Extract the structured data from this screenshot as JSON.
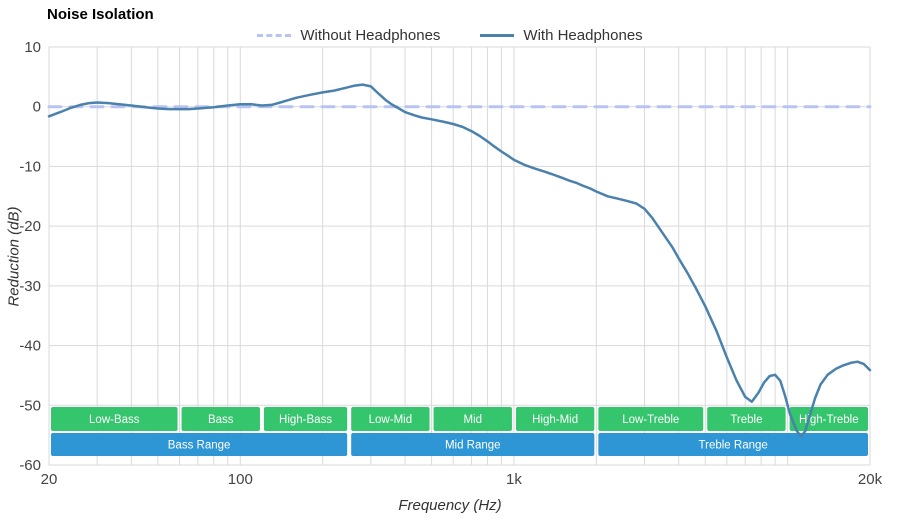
{
  "title": "Noise Isolation",
  "legend": [
    {
      "label": "Without Headphones",
      "dash": true,
      "color": "#b9c3f3"
    },
    {
      "label": "With Headphones",
      "dash": false,
      "color": "#4a81ad"
    }
  ],
  "style": {
    "grid_color": "#d9d9d9",
    "tick_color": "#444444",
    "band_text_color": "#ffffff"
  },
  "chart_data": {
    "type": "line",
    "title": "Noise Isolation",
    "xlabel": "Frequency (Hz)",
    "ylabel": "Reduction (dB)",
    "x_scale": "log",
    "xlim": [
      20,
      20000
    ],
    "ylim": [
      -60,
      10
    ],
    "grid": true,
    "legend_position": "top-center",
    "x_ticks": [
      {
        "value": 20,
        "label": "20"
      },
      {
        "value": 100,
        "label": "100"
      },
      {
        "value": 1000,
        "label": "1k"
      },
      {
        "value": 20000,
        "label": "20k"
      }
    ],
    "y_ticks": [
      {
        "value": 10,
        "label": "10"
      },
      {
        "value": 0,
        "label": "0"
      },
      {
        "value": -10,
        "label": "-10"
      },
      {
        "value": -20,
        "label": "-20"
      },
      {
        "value": -30,
        "label": "-30"
      },
      {
        "value": -40,
        "label": "-40"
      },
      {
        "value": -50,
        "label": "-50"
      },
      {
        "value": -60,
        "label": "-60"
      }
    ],
    "x_gridlines": [
      20,
      30,
      40,
      50,
      60,
      70,
      80,
      90,
      100,
      200,
      300,
      400,
      500,
      600,
      700,
      800,
      900,
      1000,
      2000,
      3000,
      4000,
      5000,
      6000,
      7000,
      8000,
      9000,
      10000,
      20000
    ],
    "y_gridlines": [
      10,
      0,
      -10,
      -20,
      -30,
      -40,
      -50,
      -60
    ],
    "series": [
      {
        "name": "Without Headphones",
        "color": "#b9c3f3",
        "dash": true,
        "points": [
          [
            20,
            0
          ],
          [
            20000,
            0
          ]
        ]
      },
      {
        "name": "With Headphones",
        "color": "#4a81ad",
        "dash": false,
        "points": [
          [
            20,
            -1.6
          ],
          [
            22,
            -0.9
          ],
          [
            24,
            -0.2
          ],
          [
            26,
            0.3
          ],
          [
            28,
            0.6
          ],
          [
            30,
            0.7
          ],
          [
            33,
            0.6
          ],
          [
            36,
            0.4
          ],
          [
            40,
            0.2
          ],
          [
            45,
            -0.1
          ],
          [
            50,
            -0.3
          ],
          [
            55,
            -0.4
          ],
          [
            60,
            -0.4
          ],
          [
            65,
            -0.4
          ],
          [
            70,
            -0.3
          ],
          [
            80,
            -0.1
          ],
          [
            90,
            0.2
          ],
          [
            100,
            0.4
          ],
          [
            110,
            0.4
          ],
          [
            120,
            0.2
          ],
          [
            130,
            0.3
          ],
          [
            140,
            0.7
          ],
          [
            150,
            1.1
          ],
          [
            160,
            1.5
          ],
          [
            180,
            2.0
          ],
          [
            200,
            2.4
          ],
          [
            220,
            2.7
          ],
          [
            240,
            3.1
          ],
          [
            260,
            3.5
          ],
          [
            280,
            3.7
          ],
          [
            300,
            3.4
          ],
          [
            320,
            2.2
          ],
          [
            340,
            1.1
          ],
          [
            360,
            0.3
          ],
          [
            380,
            -0.3
          ],
          [
            400,
            -0.9
          ],
          [
            430,
            -1.4
          ],
          [
            460,
            -1.8
          ],
          [
            500,
            -2.1
          ],
          [
            550,
            -2.5
          ],
          [
            600,
            -2.9
          ],
          [
            650,
            -3.4
          ],
          [
            700,
            -4.1
          ],
          [
            750,
            -4.9
          ],
          [
            800,
            -5.8
          ],
          [
            850,
            -6.7
          ],
          [
            900,
            -7.5
          ],
          [
            950,
            -8.2
          ],
          [
            1000,
            -8.9
          ],
          [
            1100,
            -9.8
          ],
          [
            1200,
            -10.4
          ],
          [
            1300,
            -10.9
          ],
          [
            1400,
            -11.4
          ],
          [
            1500,
            -11.9
          ],
          [
            1600,
            -12.4
          ],
          [
            1700,
            -12.8
          ],
          [
            1800,
            -13.3
          ],
          [
            1900,
            -13.7
          ],
          [
            2000,
            -14.2
          ],
          [
            2200,
            -15.0
          ],
          [
            2400,
            -15.4
          ],
          [
            2600,
            -15.8
          ],
          [
            2800,
            -16.2
          ],
          [
            3000,
            -17.1
          ],
          [
            3200,
            -18.6
          ],
          [
            3500,
            -21.2
          ],
          [
            3800,
            -23.6
          ],
          [
            4000,
            -25.4
          ],
          [
            4300,
            -27.8
          ],
          [
            4600,
            -30.2
          ],
          [
            5000,
            -33.4
          ],
          [
            5500,
            -37.6
          ],
          [
            6000,
            -42.0
          ],
          [
            6500,
            -45.8
          ],
          [
            7000,
            -48.6
          ],
          [
            7400,
            -49.4
          ],
          [
            7800,
            -48.0
          ],
          [
            8200,
            -46.2
          ],
          [
            8600,
            -45.1
          ],
          [
            9000,
            -44.9
          ],
          [
            9400,
            -45.9
          ],
          [
            9800,
            -48.5
          ],
          [
            10200,
            -51.5
          ],
          [
            10800,
            -54.3
          ],
          [
            11200,
            -55.2
          ],
          [
            11600,
            -54.3
          ],
          [
            12000,
            -52.0
          ],
          [
            12600,
            -48.8
          ],
          [
            13200,
            -46.5
          ],
          [
            14000,
            -44.9
          ],
          [
            15000,
            -43.9
          ],
          [
            16000,
            -43.3
          ],
          [
            17000,
            -42.9
          ],
          [
            18000,
            -42.7
          ],
          [
            19000,
            -43.1
          ],
          [
            20000,
            -44.1
          ]
        ]
      }
    ],
    "band_rows": [
      {
        "color": "#35c56d",
        "bands": [
          {
            "label": "Low-Bass",
            "from": 20,
            "to": 60
          },
          {
            "label": "Bass",
            "from": 60,
            "to": 120
          },
          {
            "label": "High-Bass",
            "from": 120,
            "to": 250
          },
          {
            "label": "Low-Mid",
            "from": 250,
            "to": 500
          },
          {
            "label": "Mid",
            "from": 500,
            "to": 1000
          },
          {
            "label": "High-Mid",
            "from": 1000,
            "to": 2000
          },
          {
            "label": "Low-Treble",
            "from": 2000,
            "to": 5000
          },
          {
            "label": "Treble",
            "from": 5000,
            "to": 10000
          },
          {
            "label": "High-Treble",
            "from": 10000,
            "to": 20000
          }
        ]
      },
      {
        "color": "#2f96d5",
        "bands": [
          {
            "label": "Bass Range",
            "from": 20,
            "to": 250
          },
          {
            "label": "Mid Range",
            "from": 250,
            "to": 2000
          },
          {
            "label": "Treble Range",
            "from": 2000,
            "to": 20000
          }
        ]
      }
    ]
  }
}
